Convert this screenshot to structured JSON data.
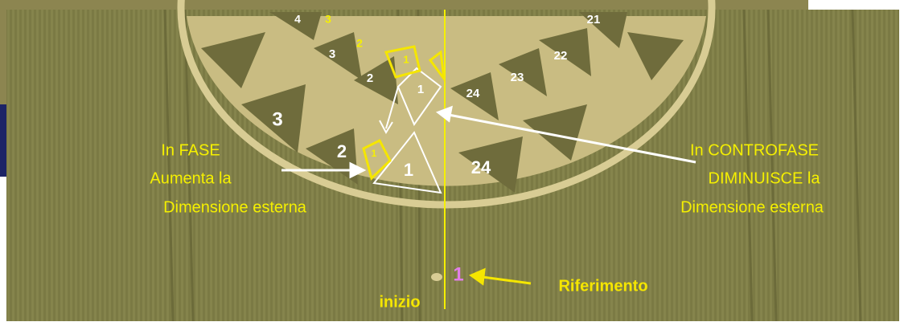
{
  "numbers": {
    "outer": [
      "4",
      "3",
      "2",
      "1",
      "21",
      "22",
      "23",
      "24"
    ],
    "inner": [
      "3",
      "2",
      "1",
      "24"
    ],
    "markers": [
      "3",
      "2",
      "1",
      "1"
    ]
  },
  "left_note": [
    "In FASE",
    "Aumenta la",
    "Dimensione esterna"
  ],
  "right_note": [
    "In CONTROFASE",
    "DIMINUISCE la",
    "Dimensione esterna"
  ],
  "start": "inizio",
  "reference": {
    "number": "1",
    "label": "Riferimento"
  }
}
